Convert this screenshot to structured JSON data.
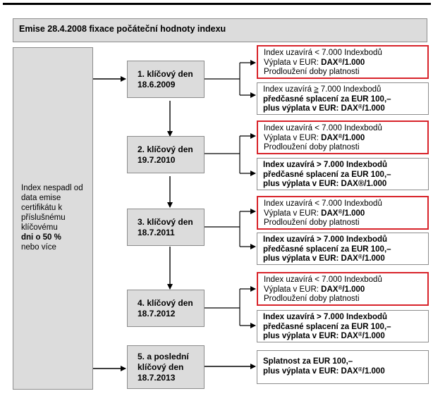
{
  "header": {
    "title": "Emise 28.4.2008 fixace počáteční hodnoty indexu"
  },
  "left": {
    "line1": "Index nespadl od",
    "line2": "data emise",
    "line3": "certifikátu k",
    "line4": "příslušnému",
    "line5": "klíčovému",
    "line6": "dni o 50 %",
    "line7": "nebo více"
  },
  "key_days": [
    {
      "l1": "1. klíčový den",
      "l2": "18.6.2009"
    },
    {
      "l1": "2. klíčový den",
      "l2": "19.7.2010"
    },
    {
      "l1": "3. klíčový den",
      "l2": "18.7.2011"
    },
    {
      "l1": "4. klíčový den",
      "l2": "18.7.2012"
    },
    {
      "l1": "5. a poslední",
      "l2": "klíčový den",
      "l3": "18.7.2013"
    }
  ],
  "below": {
    "l1": "Index uzavírá < 7.000 Indexbodů",
    "l2a": "Výplata v EUR: ",
    "l2b": "DAX",
    "reg": "®",
    "l2c": "/1.000",
    "l3": "Prodloužení doby platnosti"
  },
  "above_first": {
    "l1a": "Index uzavírá ",
    "l1u": "≥",
    "l1b": " 7.000 Indexbodů",
    "l2": "předčasné splacení za EUR 100,–",
    "l3a": "plus výplata v EUR: DAX",
    "reg": "®",
    "l3b": "/1.000"
  },
  "above_rest": {
    "l1": "Index uzavírá > 7.000 Indexbodů",
    "l2": "předčasné splacení za EUR 100,–",
    "l3_2": "plus výplata v EUR: DAX®/1.000",
    "l3a": "plus výplata v EUR: DAX",
    "reg": "®",
    "l3b": "/1.000"
  },
  "final": {
    "l1": "Splatnost za EUR 100,–",
    "l2a": "plus výplata v EUR: DAX",
    "reg": "®",
    "l2b": "/1.000"
  }
}
